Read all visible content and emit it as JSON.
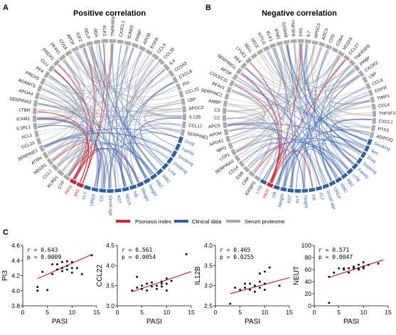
{
  "panels": {
    "a_letter": "A",
    "b_letter": "B",
    "c_letter": "C",
    "a_title": "Positive correlation",
    "b_title": "Negative correlation"
  },
  "colors": {
    "psoriasis": "#d4232a",
    "clinical": "#2f5fa8",
    "proteome": "#aaaaaa",
    "link_blue": "#4d6fb6",
    "link_red": "#d4232a",
    "fit_line": "#d4232a",
    "point": "#111111"
  },
  "legend": [
    {
      "label": "Psoriasis index",
      "color": "#d4232a"
    },
    {
      "label": "Clinical data",
      "color": "#2f5fa8"
    },
    {
      "label": "Serum proteome",
      "color": "#aaaaaa"
    }
  ],
  "chart_data": [
    {
      "type": "chord",
      "title": "Positive correlation",
      "nodes": [
        {
          "name": "VAS",
          "group": "psoriasis"
        },
        {
          "name": "PASI",
          "group": "psoriasis"
        },
        {
          "name": "CTP",
          "group": "proteome"
        },
        {
          "name": "KLRD1",
          "group": "proteome"
        },
        {
          "name": "CCL7",
          "group": "proteome"
        },
        {
          "name": "NEGR1",
          "group": "proteome"
        },
        {
          "name": "ATRN",
          "group": "proteome"
        },
        {
          "name": "SERPINE1",
          "group": "proteome"
        },
        {
          "name": "CCL23",
          "group": "proteome"
        },
        {
          "name": "XCL1",
          "group": "proteome"
        },
        {
          "name": "IL1RL1",
          "group": "proteome"
        },
        {
          "name": "ICAM1",
          "group": "proteome"
        },
        {
          "name": "LTBR",
          "group": "proteome"
        },
        {
          "name": "SERPINA3",
          "group": "proteome"
        },
        {
          "name": "APOA4",
          "group": "proteome"
        },
        {
          "name": "ADAMTS",
          "group": "proteome"
        },
        {
          "name": "PRDX5",
          "group": "proteome"
        },
        {
          "name": "PF4",
          "group": "proteome"
        },
        {
          "name": "CLU",
          "group": "proteome"
        },
        {
          "name": "PRDX1",
          "group": "proteome"
        },
        {
          "name": "PF4V1",
          "group": "proteome"
        },
        {
          "name": "CD14",
          "group": "proteome"
        },
        {
          "name": "APOF",
          "group": "proteome"
        },
        {
          "name": "IGF2",
          "group": "proteome"
        },
        {
          "name": "SELP",
          "group": "proteome"
        },
        {
          "name": "ADA",
          "group": "proteome"
        },
        {
          "name": "KLK1",
          "group": "proteome"
        },
        {
          "name": "TNFRSF8",
          "group": "proteome"
        },
        {
          "name": "CX3CL1",
          "group": "proteome"
        },
        {
          "name": "ICAM3",
          "group": "proteome"
        },
        {
          "name": "PPBP",
          "group": "proteome"
        },
        {
          "name": "APOB",
          "group": "proteome"
        },
        {
          "name": "EGFR",
          "group": "proteome"
        },
        {
          "name": "CCL4",
          "group": "proteome"
        },
        {
          "name": "CCL30",
          "group": "proteome"
        },
        {
          "name": "IL4",
          "group": "proteome"
        },
        {
          "name": "CD163",
          "group": "proteome"
        },
        {
          "name": "CXCL8",
          "group": "proteome"
        },
        {
          "name": "PI3",
          "group": "proteome"
        },
        {
          "name": "CCL22",
          "group": "proteome"
        },
        {
          "name": "LBP",
          "group": "proteome"
        },
        {
          "name": "APOC3",
          "group": "proteome"
        },
        {
          "name": "IL12B",
          "group": "proteome"
        },
        {
          "name": "CCL17",
          "group": "proteome"
        },
        {
          "name": "SERPINE1",
          "group": "proteome"
        },
        {
          "name": "Drug",
          "group": "clinical"
        },
        {
          "name": "Family",
          "group": "clinical"
        },
        {
          "name": "Smoking",
          "group": "clinical"
        },
        {
          "name": "Drinking",
          "group": "clinical"
        },
        {
          "name": "LYM",
          "group": "clinical"
        },
        {
          "name": "WBC",
          "group": "clinical"
        },
        {
          "name": "RBC",
          "group": "clinical"
        },
        {
          "name": "Height",
          "group": "clinical"
        },
        {
          "name": "Weight",
          "group": "clinical"
        },
        {
          "name": "HB",
          "group": "clinical"
        },
        {
          "name": "NEUT",
          "group": "clinical"
        },
        {
          "name": "AST",
          "group": "clinical"
        },
        {
          "name": "Onset age",
          "group": "clinical"
        },
        {
          "name": "CR",
          "group": "clinical"
        },
        {
          "name": "UREA",
          "group": "clinical"
        },
        {
          "name": "PLT",
          "group": "clinical"
        }
      ]
    },
    {
      "type": "chord",
      "title": "Negative correlation",
      "nodes": [
        {
          "name": "PASI",
          "group": "psoriasis"
        },
        {
          "name": "LYM",
          "group": "clinical"
        },
        {
          "name": "IGFBP3",
          "group": "proteome"
        },
        {
          "name": "CRP",
          "group": "proteome"
        },
        {
          "name": "ESR",
          "group": "proteome"
        },
        {
          "name": "CD14",
          "group": "proteome"
        },
        {
          "name": "SERPINA3",
          "group": "proteome"
        },
        {
          "name": "LCP1",
          "group": "proteome"
        },
        {
          "name": "MPO",
          "group": "proteome"
        },
        {
          "name": "APOA1",
          "group": "proteome"
        },
        {
          "name": "APOH",
          "group": "proteome"
        },
        {
          "name": "APCS",
          "group": "proteome"
        },
        {
          "name": "C2",
          "group": "proteome"
        },
        {
          "name": "C3",
          "group": "proteome"
        },
        {
          "name": "AMBP",
          "group": "proteome"
        },
        {
          "name": "SERPINC1",
          "group": "proteome"
        },
        {
          "name": "PF4V1",
          "group": "proteome"
        },
        {
          "name": "COLEC11",
          "group": "proteome"
        },
        {
          "name": "APOF",
          "group": "proteome"
        },
        {
          "name": "SERPING1",
          "group": "proteome"
        },
        {
          "name": "PF4",
          "group": "proteome"
        },
        {
          "name": "LYVE1",
          "group": "proteome"
        },
        {
          "name": "SELL",
          "group": "proteome"
        },
        {
          "name": "SELE",
          "group": "proteome"
        },
        {
          "name": "KITLG",
          "group": "proteome"
        },
        {
          "name": "KLK1",
          "group": "proteome"
        },
        {
          "name": "IFNG",
          "group": "proteome"
        },
        {
          "name": "S100A9",
          "group": "proteome"
        },
        {
          "name": "TNFSF8",
          "group": "proteome"
        },
        {
          "name": "FAS",
          "group": "proteome"
        },
        {
          "name": "IL7",
          "group": "proteome"
        },
        {
          "name": "APOC3",
          "group": "proteome"
        },
        {
          "name": "AOC3",
          "group": "proteome"
        },
        {
          "name": "CFD",
          "group": "proteome"
        },
        {
          "name": "CD6A",
          "group": "proteome"
        },
        {
          "name": "VEGFA",
          "group": "proteome"
        },
        {
          "name": "CCL27",
          "group": "proteome"
        },
        {
          "name": "TNFRSF8",
          "group": "proteome"
        },
        {
          "name": "PPBP",
          "group": "proteome"
        },
        {
          "name": "CXCR3",
          "group": "proteome"
        },
        {
          "name": "LBP",
          "group": "proteome"
        },
        {
          "name": "CCL8",
          "group": "proteome"
        },
        {
          "name": "EGFR",
          "group": "proteome"
        },
        {
          "name": "TIMP1",
          "group": "proteome"
        },
        {
          "name": "CCL4",
          "group": "proteome"
        },
        {
          "name": "TNFSF13B",
          "group": "proteome"
        },
        {
          "name": "CXCL1",
          "group": "proteome"
        },
        {
          "name": "PTX3",
          "group": "proteome"
        },
        {
          "name": "ADIPOQ",
          "group": "proteome"
        },
        {
          "name": "Smoking",
          "group": "clinical"
        },
        {
          "name": "Sex",
          "group": "clinical"
        },
        {
          "name": "Drug",
          "group": "clinical"
        },
        {
          "name": "Drinking",
          "group": "clinical"
        },
        {
          "name": "Family",
          "group": "clinical"
        },
        {
          "name": "LYM",
          "group": "clinical"
        },
        {
          "name": "RBC",
          "group": "clinical"
        },
        {
          "name": "WBC",
          "group": "clinical"
        },
        {
          "name": "UREA",
          "group": "clinical"
        },
        {
          "name": "Onset age",
          "group": "clinical"
        },
        {
          "name": "PLT",
          "group": "clinical"
        },
        {
          "name": "CR",
          "group": "clinical"
        },
        {
          "name": "Height",
          "group": "clinical"
        },
        {
          "name": "ALT",
          "group": "clinical"
        },
        {
          "name": "AST",
          "group": "clinical"
        },
        {
          "name": "Weight",
          "group": "clinical"
        },
        {
          "name": "HB",
          "group": "clinical"
        }
      ]
    },
    {
      "type": "scatter",
      "xlabel": "PASI",
      "ylabel": "PI3",
      "r_text": "r = 0.643",
      "p_text": "p = 0.0009",
      "xlim": [
        0,
        15
      ],
      "ylim": [
        3.8,
        4.6
      ],
      "xticks": [
        0,
        5,
        10,
        15
      ],
      "yticks": [
        3.8,
        4.0,
        4.2,
        4.4,
        4.6
      ],
      "ytick_labels": [
        "3.8",
        "4.0",
        "4.2",
        "4.4",
        "4.6"
      ],
      "fit": [
        [
          3,
          4.16
        ],
        [
          14,
          4.48
        ]
      ],
      "points": [
        [
          3,
          4.0
        ],
        [
          3,
          4.05
        ],
        [
          4,
          4.25
        ],
        [
          5,
          4.01
        ],
        [
          6,
          4.35
        ],
        [
          6,
          4.22
        ],
        [
          7,
          4.35
        ],
        [
          7,
          4.28
        ],
        [
          8,
          4.3
        ],
        [
          8,
          4.38
        ],
        [
          8,
          4.26
        ],
        [
          9,
          4.33
        ],
        [
          9,
          4.39
        ],
        [
          9,
          4.28
        ],
        [
          10,
          4.38
        ],
        [
          10,
          4.3
        ],
        [
          10,
          4.24
        ],
        [
          11,
          4.3
        ],
        [
          12,
          4.22
        ],
        [
          14,
          4.47
        ]
      ]
    },
    {
      "type": "scatter",
      "xlabel": "PASI",
      "ylabel": "CCL22",
      "r_text": "r = 0.561",
      "p_text": "p = 0.0054",
      "xlim": [
        0,
        15
      ],
      "ylim": [
        3.0,
        4.5
      ],
      "xticks": [
        0,
        5,
        10,
        15
      ],
      "yticks": [
        3.0,
        3.5,
        4.0,
        4.5
      ],
      "ytick_labels": [
        "3.0",
        "3.5",
        "4.0",
        "4.5"
      ],
      "fit": [
        [
          3,
          3.35
        ],
        [
          15,
          3.85
        ]
      ],
      "points": [
        [
          3,
          3.38
        ],
        [
          4,
          3.72
        ],
        [
          4,
          3.45
        ],
        [
          5,
          3.5
        ],
        [
          5,
          3.42
        ],
        [
          6,
          3.55
        ],
        [
          6,
          3.38
        ],
        [
          7,
          3.48
        ],
        [
          7,
          3.58
        ],
        [
          8,
          3.5
        ],
        [
          8,
          3.42
        ],
        [
          9,
          3.6
        ],
        [
          9,
          3.48
        ],
        [
          9,
          3.55
        ],
        [
          10,
          3.68
        ],
        [
          10,
          3.55
        ],
        [
          10,
          3.38
        ],
        [
          11,
          3.62
        ],
        [
          14,
          4.28
        ]
      ]
    },
    {
      "type": "scatter",
      "xlabel": "PASI",
      "ylabel": "IL12B",
      "r_text": "r = 0.465",
      "p_text": "p = 0.0255",
      "xlim": [
        0,
        15
      ],
      "ylim": [
        2.5,
        4.0
      ],
      "xticks": [
        0,
        5,
        10,
        15
      ],
      "yticks": [
        2.5,
        3.0,
        3.5,
        4.0
      ],
      "ytick_labels": [
        "2.5",
        "3.0",
        "3.5",
        "4.0"
      ],
      "fit": [
        [
          3,
          2.8
        ],
        [
          15,
          3.2
        ]
      ],
      "points": [
        [
          3,
          2.55
        ],
        [
          4,
          2.95
        ],
        [
          5,
          2.9
        ],
        [
          6,
          2.95
        ],
        [
          6,
          3.05
        ],
        [
          7,
          3.05
        ],
        [
          7,
          2.9
        ],
        [
          8,
          3.0
        ],
        [
          8,
          2.85
        ],
        [
          9,
          3.1
        ],
        [
          9,
          2.95
        ],
        [
          9,
          3.3
        ],
        [
          10,
          3.05
        ],
        [
          10,
          3.35
        ],
        [
          10,
          2.9
        ],
        [
          11,
          3.45
        ],
        [
          13,
          3.0
        ]
      ]
    },
    {
      "type": "scatter",
      "xlabel": "PASI",
      "ylabel": "NEUT",
      "r_text": "r = 0.571",
      "p_text": "p = 0.0047",
      "xlim": [
        0,
        15
      ],
      "ylim": [
        0,
        100
      ],
      "xticks": [
        0,
        5,
        10,
        15
      ],
      "yticks": [
        0,
        20,
        40,
        60,
        80,
        100
      ],
      "ytick_labels": [
        "0",
        "20",
        "40",
        "60",
        "80",
        "100"
      ],
      "fit": [
        [
          3,
          47
        ],
        [
          14,
          76
        ]
      ],
      "points": [
        [
          3,
          48
        ],
        [
          3,
          5
        ],
        [
          4,
          55
        ],
        [
          5,
          62
        ],
        [
          6,
          60
        ],
        [
          6,
          62
        ],
        [
          7,
          55
        ],
        [
          7,
          62
        ],
        [
          8,
          62
        ],
        [
          8,
          65
        ],
        [
          9,
          62
        ],
        [
          9,
          68
        ],
        [
          9,
          60
        ],
        [
          10,
          72
        ],
        [
          10,
          65
        ],
        [
          10,
          62
        ],
        [
          11,
          68
        ],
        [
          13,
          70
        ]
      ]
    }
  ]
}
